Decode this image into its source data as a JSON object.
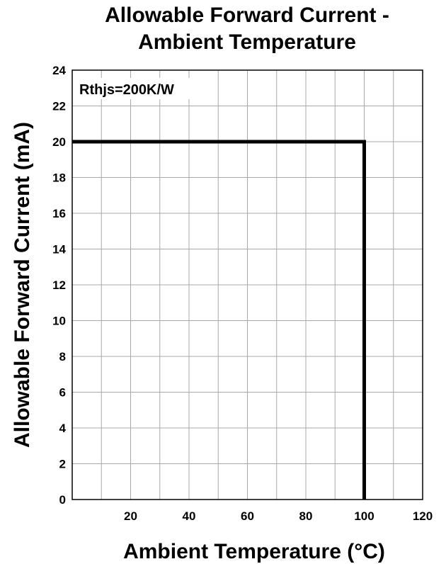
{
  "chart_data": {
    "type": "line",
    "title_line1": "Allowable Forward Current -",
    "title_line2": "Ambient Temperature",
    "xlabel": "Ambient Temperature (°C)",
    "ylabel": "Allowable Forward Current (mA)",
    "annotation": "Rthjs=200K/W",
    "xlim": [
      0,
      120
    ],
    "ylim": [
      0,
      24
    ],
    "x_ticks": [
      20,
      40,
      60,
      80,
      100,
      120
    ],
    "y_ticks": [
      0,
      2,
      4,
      6,
      8,
      10,
      12,
      14,
      16,
      18,
      20,
      22,
      24
    ],
    "x_grid_step": 10,
    "y_grid_step": 2,
    "grid": true,
    "series": [
      {
        "x": [
          0,
          100,
          100
        ],
        "y": [
          20,
          20,
          0
        ],
        "color": "#000000"
      }
    ]
  }
}
